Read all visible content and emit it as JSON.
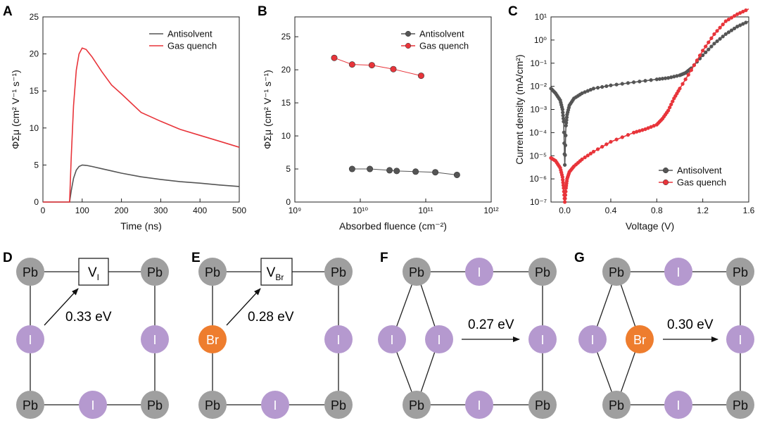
{
  "panels": {
    "A": "A",
    "B": "B",
    "C": "C",
    "D": "D",
    "E": "E",
    "F": "F",
    "G": "G"
  },
  "colors": {
    "antisolvent": "#555555",
    "gas_quench": "#e8343a",
    "iodide": "#b599cf",
    "bromide": "#ee7d2e",
    "lead": "#9f9f9f"
  },
  "chart_data": [
    {
      "id": "A",
      "type": "line",
      "xlabel": "Time (ns)",
      "ylabel": "ΦΣμ (cm² V⁻¹ s⁻¹)",
      "xlim": [
        0,
        500
      ],
      "ylim": [
        0,
        25
      ],
      "xticks": [
        0,
        100,
        200,
        300,
        400,
        500
      ],
      "yticks": [
        0,
        5,
        10,
        15,
        20,
        25
      ],
      "legend": "top-right",
      "series": [
        {
          "name": "Antisolvent",
          "color": "#555555",
          "x": [
            0,
            60,
            68,
            72,
            78,
            85,
            92,
            100,
            110,
            125,
            150,
            175,
            200,
            250,
            300,
            350,
            400,
            450,
            500
          ],
          "y": [
            0,
            0,
            0,
            1.5,
            3.2,
            4.3,
            4.8,
            5.0,
            4.95,
            4.8,
            4.5,
            4.2,
            3.9,
            3.4,
            3.05,
            2.75,
            2.55,
            2.3,
            2.1
          ]
        },
        {
          "name": "Gas quench",
          "color": "#e8343a",
          "x": [
            0,
            60,
            68,
            72,
            78,
            85,
            92,
            100,
            110,
            125,
            150,
            175,
            200,
            250,
            300,
            350,
            400,
            450,
            500
          ],
          "y": [
            0,
            0,
            0,
            6.0,
            13.0,
            17.8,
            20.0,
            20.8,
            20.6,
            19.6,
            17.6,
            15.8,
            14.6,
            12.1,
            10.9,
            9.8,
            9.0,
            8.2,
            7.4
          ]
        }
      ]
    },
    {
      "id": "B",
      "type": "scatter",
      "xscale": "log",
      "xlabel": "Absorbed fluence (cm⁻²)",
      "ylabel": "ΦΣμ (cm² V⁻¹ s⁻¹)",
      "xlim": [
        1000000000.0,
        1000000000000.0
      ],
      "ylim": [
        0,
        28
      ],
      "xticks": [
        "10⁹",
        "10¹⁰",
        "10¹¹",
        "10¹²"
      ],
      "yticks": [
        0,
        5,
        10,
        15,
        20,
        25
      ],
      "legend": "top-right",
      "series": [
        {
          "name": "Antisolvent",
          "color": "#555555",
          "x": [
            7500000000.0,
            14000000000.0,
            28000000000.0,
            36000000000.0,
            70000000000.0,
            140000000000.0,
            300000000000.0
          ],
          "y": [
            5.0,
            5.0,
            4.8,
            4.7,
            4.6,
            4.5,
            4.1
          ]
        },
        {
          "name": "Gas quench",
          "color": "#e8343a",
          "x": [
            4000000000.0,
            7500000000.0,
            15000000000.0,
            32000000000.0,
            85000000000.0
          ],
          "y": [
            21.8,
            20.8,
            20.7,
            20.1,
            19.1
          ]
        }
      ]
    },
    {
      "id": "C",
      "type": "line",
      "yscale": "log",
      "xlabel": "Voltage (V)",
      "ylabel": "Current density (mA/cm²)",
      "xlim": [
        -0.12,
        1.6
      ],
      "ylim": [
        1e-07,
        10.0
      ],
      "xticks": [
        0.0,
        0.4,
        0.8,
        1.2,
        1.6
      ],
      "xticklabels": [
        "0.0",
        "0.4",
        "0.8",
        "1.2",
        "1.6"
      ],
      "yticks": [
        "10⁻⁷",
        "10⁻⁶",
        "10⁻⁵",
        "10⁻⁴",
        "10⁻³",
        "10⁻²",
        "10⁻¹",
        "10⁰",
        "10¹"
      ],
      "legend": "bottom-right",
      "series": [
        {
          "name": "Antisolvent",
          "color": "#555555",
          "x": [
            -0.12,
            -0.08,
            -0.04,
            -0.02,
            -0.01,
            0.0,
            0.01,
            0.02,
            0.04,
            0.08,
            0.15,
            0.25,
            0.4,
            0.6,
            0.8,
            0.9,
            1.0,
            1.05,
            1.1,
            1.2,
            1.3,
            1.4,
            1.5,
            1.6
          ],
          "y": [
            0.008,
            0.005,
            0.0025,
            0.001,
            0.0003,
            4e-06,
            0.0002,
            0.0006,
            0.0015,
            0.003,
            0.005,
            0.008,
            0.011,
            0.015,
            0.02,
            0.023,
            0.03,
            0.038,
            0.06,
            0.22,
            0.7,
            1.8,
            3.8,
            6.5
          ]
        },
        {
          "name": "Gas quench",
          "color": "#e8343a",
          "x": [
            -0.12,
            -0.08,
            -0.04,
            -0.02,
            -0.01,
            0.0,
            0.01,
            0.02,
            0.04,
            0.08,
            0.15,
            0.25,
            0.4,
            0.6,
            0.7,
            0.8,
            0.85,
            0.9,
            0.95,
            1.0,
            1.1,
            1.2,
            1.3,
            1.4,
            1.5,
            1.6
          ],
          "y": [
            8e-06,
            6e-06,
            3e-06,
            1.2e-06,
            4e-07,
            1e-07,
            4e-07,
            1e-06,
            2e-06,
            3.5e-06,
            7e-06,
            1.5e-05,
            4e-05,
            0.0001,
            0.00014,
            0.00022,
            0.0004,
            0.0009,
            0.003,
            0.008,
            0.05,
            0.35,
            1.8,
            6.5,
            13,
            22
          ]
        }
      ]
    }
  ],
  "diagrams": {
    "D": {
      "vacancy_main": "V",
      "vacancy_sub": "I",
      "energy": "0.33 eV",
      "top_left": "Pb",
      "top_right": "Pb",
      "bottom_left": "Pb",
      "bottom_right": "Pb",
      "mid_left": "I",
      "mid_right": "I",
      "bottom_mid": "I"
    },
    "E": {
      "vacancy_main": "V",
      "vacancy_sub": "Br",
      "energy": "0.28 eV",
      "top_left": "Pb",
      "top_right": "Pb",
      "bottom_left": "Pb",
      "bottom_right": "Pb",
      "mid_left": "Br",
      "mid_right": "I",
      "bottom_mid": "I"
    },
    "F": {
      "energy": "0.27 eV",
      "top_left": "Pb",
      "top_mid": "I",
      "top_right": "Pb",
      "bottom_left": "Pb",
      "bottom_mid": "I",
      "bottom_right": "Pb",
      "left_a": "I",
      "left_b": "I",
      "mid_right": "I"
    },
    "G": {
      "energy": "0.30 eV",
      "top_left": "Pb",
      "top_mid": "I",
      "top_right": "Pb",
      "bottom_left": "Pb",
      "bottom_mid": "I",
      "bottom_right": "Pb",
      "left_a": "I",
      "left_b": "Br",
      "mid_right": "I"
    }
  }
}
